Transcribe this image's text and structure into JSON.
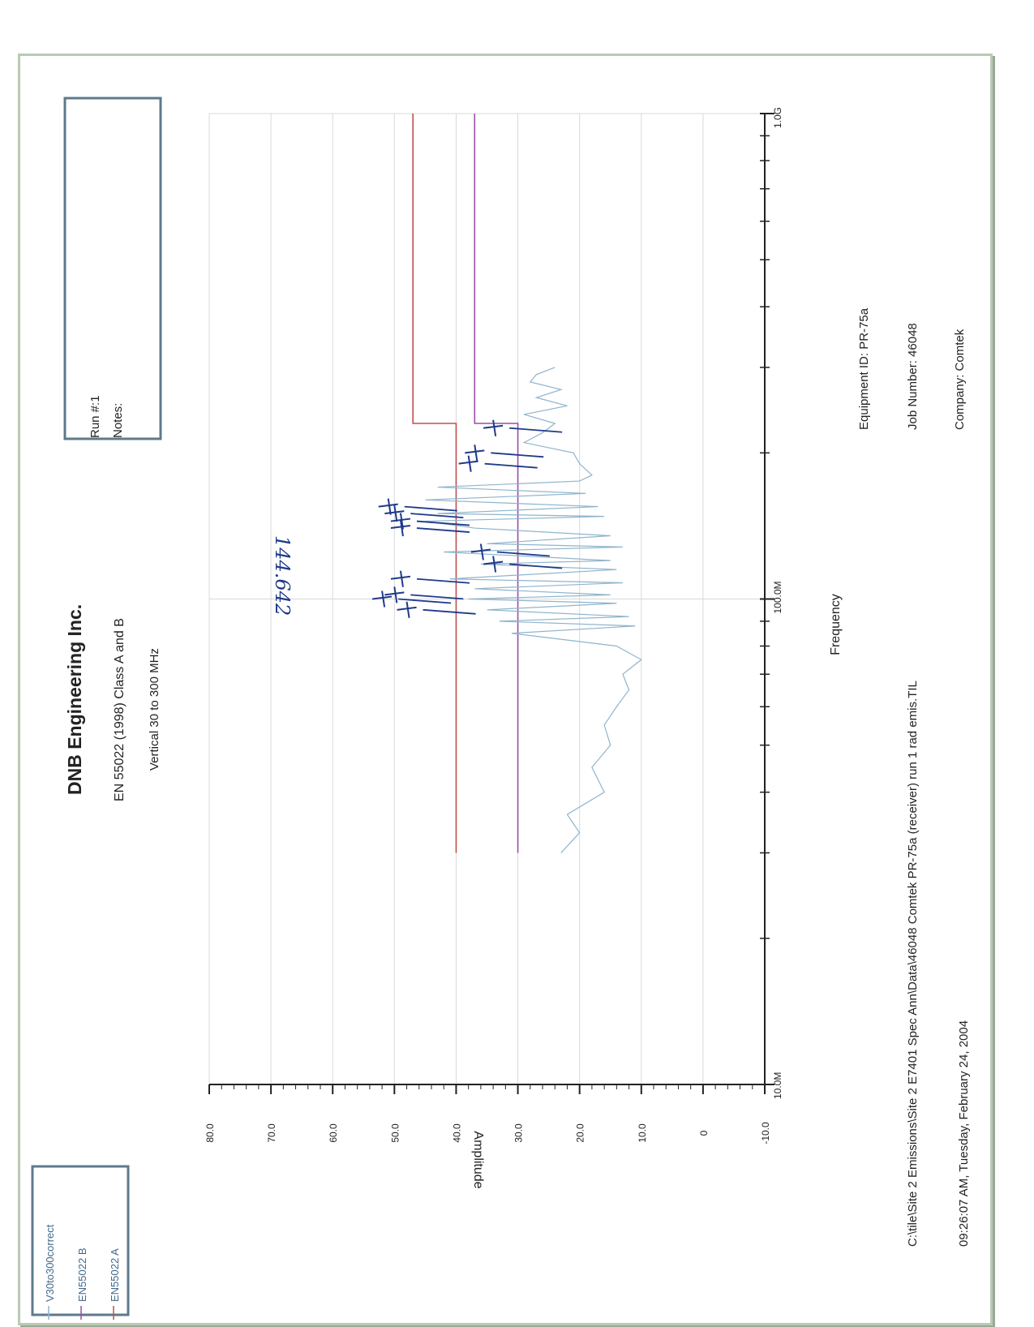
{
  "header": {
    "company_title": "DNB Engineering Inc.",
    "standard": "EN 55022 (1998) Class A and B",
    "scan": "Vertical 30 to 300 MHz"
  },
  "run_box": {
    "run": "Run #:1",
    "notes": "Notes:"
  },
  "info": {
    "equipment": "Equipment ID: PR-75a",
    "job": "Job Number: 46048",
    "company": "Company: Comtek",
    "file_path": "C:\\tile\\Site 2 Emissions\\Site 2 E7401 Spec Ann\\Data\\46048 Comtek PR-75a (receiver) run 1 rad emis.TIL",
    "timestamp": "09:26:07 AM, Tuesday, February 24, 2004"
  },
  "handwritten": {
    "frequency_note": "144.642"
  },
  "colors": {
    "trace": "#8fb4cc",
    "limit_a": "#c0504d",
    "limit_b": "#9b4fa6",
    "ink": "#1e3a8a"
  },
  "chart_data": {
    "type": "line",
    "xlabel": "Frequency",
    "ylabel": "Amplitude",
    "x_scale": "log",
    "xlim": [
      10,
      1000
    ],
    "ylim": [
      -10,
      80
    ],
    "x_ticks": [
      "10.0M",
      "100.0M",
      "1.0G"
    ],
    "y_ticks": [
      "-10.0",
      "0",
      "10.0",
      "20.0",
      "30.0",
      "40.0",
      "50.0",
      "60.0",
      "70.0",
      "80.0"
    ],
    "legend": [
      "V30to300correct",
      "EN55022 B",
      "EN55022 A"
    ],
    "legend_position": "left",
    "limit_lines": [
      {
        "name": "EN55022 A",
        "points": [
          [
            30,
            40
          ],
          [
            230,
            40
          ],
          [
            230,
            47
          ],
          [
            1000,
            47
          ]
        ]
      },
      {
        "name": "EN55022 B",
        "points": [
          [
            30,
            30
          ],
          [
            230,
            30
          ],
          [
            230,
            37
          ],
          [
            1000,
            37
          ]
        ]
      }
    ],
    "series": [
      {
        "name": "V30to300correct",
        "x": [
          30,
          33,
          36,
          40,
          45,
          50,
          55,
          60,
          65,
          70,
          75,
          80,
          85,
          88,
          90,
          92,
          95,
          98,
          100,
          102,
          105,
          108,
          110,
          115,
          118,
          120,
          125,
          128,
          130,
          135,
          140,
          144.642,
          148,
          150,
          155,
          160,
          165,
          170,
          175,
          180,
          190,
          200,
          210,
          220,
          230,
          240,
          250,
          260,
          270,
          280,
          290,
          300
        ],
        "y": [
          23,
          20,
          22,
          16,
          18,
          15,
          16,
          14,
          12,
          13,
          10,
          14,
          31,
          11,
          33,
          12,
          35,
          14,
          38,
          15,
          37,
          13,
          41,
          14,
          36,
          15,
          42,
          13,
          35,
          15,
          37,
          45,
          16,
          43,
          17,
          45,
          19,
          43,
          20,
          18,
          20,
          21,
          29,
          26,
          24,
          29,
          22,
          27,
          23,
          28,
          27,
          24
        ]
      }
    ]
  }
}
